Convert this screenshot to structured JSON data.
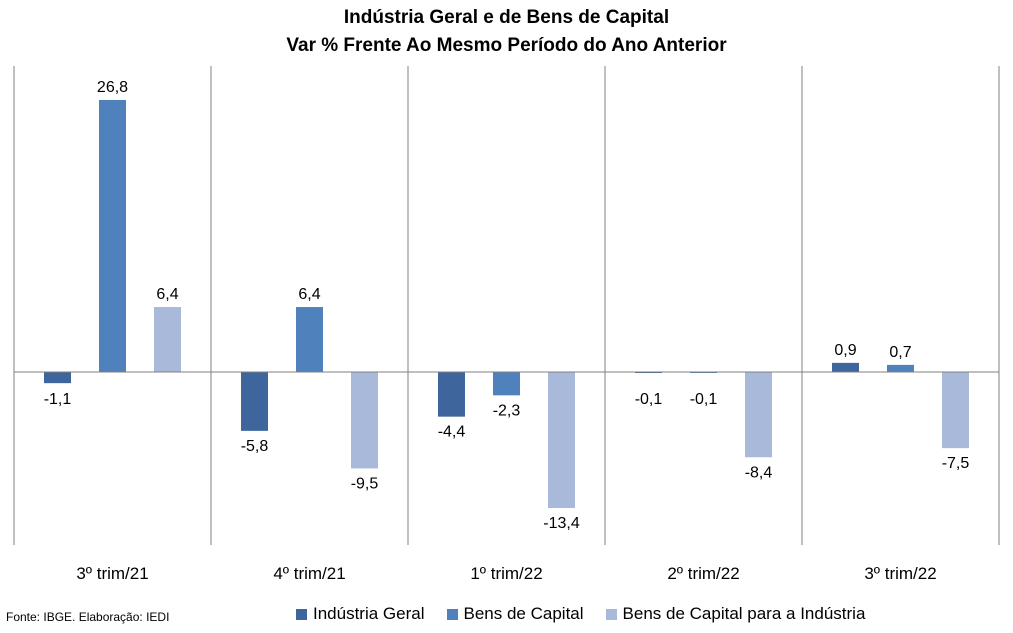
{
  "chart_data": {
    "type": "bar",
    "title": "Indústria Geral e de Bens de Capital",
    "subtitle": "Var % Frente Ao Mesmo Período do Ano Anterior",
    "categories": [
      "3º trim/21",
      "4º trim/21",
      "1º trim/22",
      "2º trim/22",
      "3º trim/22"
    ],
    "series": [
      {
        "name": "Indústria Geral",
        "color": "#3f669c",
        "values": [
          -1.1,
          -5.8,
          -4.4,
          -0.1,
          0.9
        ],
        "labels": [
          "-1,1",
          "-5,8",
          "-4,4",
          "-0,1",
          "0,9"
        ]
      },
      {
        "name": "Bens de Capital",
        "color": "#4f81bd",
        "values": [
          26.8,
          6.4,
          -2.3,
          -0.1,
          0.7
        ],
        "labels": [
          "26,8",
          "6,4",
          "-2,3",
          "-0,1",
          "0,7"
        ]
      },
      {
        "name": "Bens de Capital para a Indústria",
        "color": "#a9b9d9",
        "values": [
          6.4,
          -9.5,
          -13.4,
          -8.4,
          -7.5
        ],
        "labels": [
          "6,4",
          "-9,5",
          "-13,4",
          "-8,4",
          "-7,5"
        ]
      }
    ],
    "xlabel": "",
    "ylabel": "",
    "grid": false,
    "legend_position": "bottom"
  },
  "source": "Fonte: IBGE. Elaboração: IEDI"
}
